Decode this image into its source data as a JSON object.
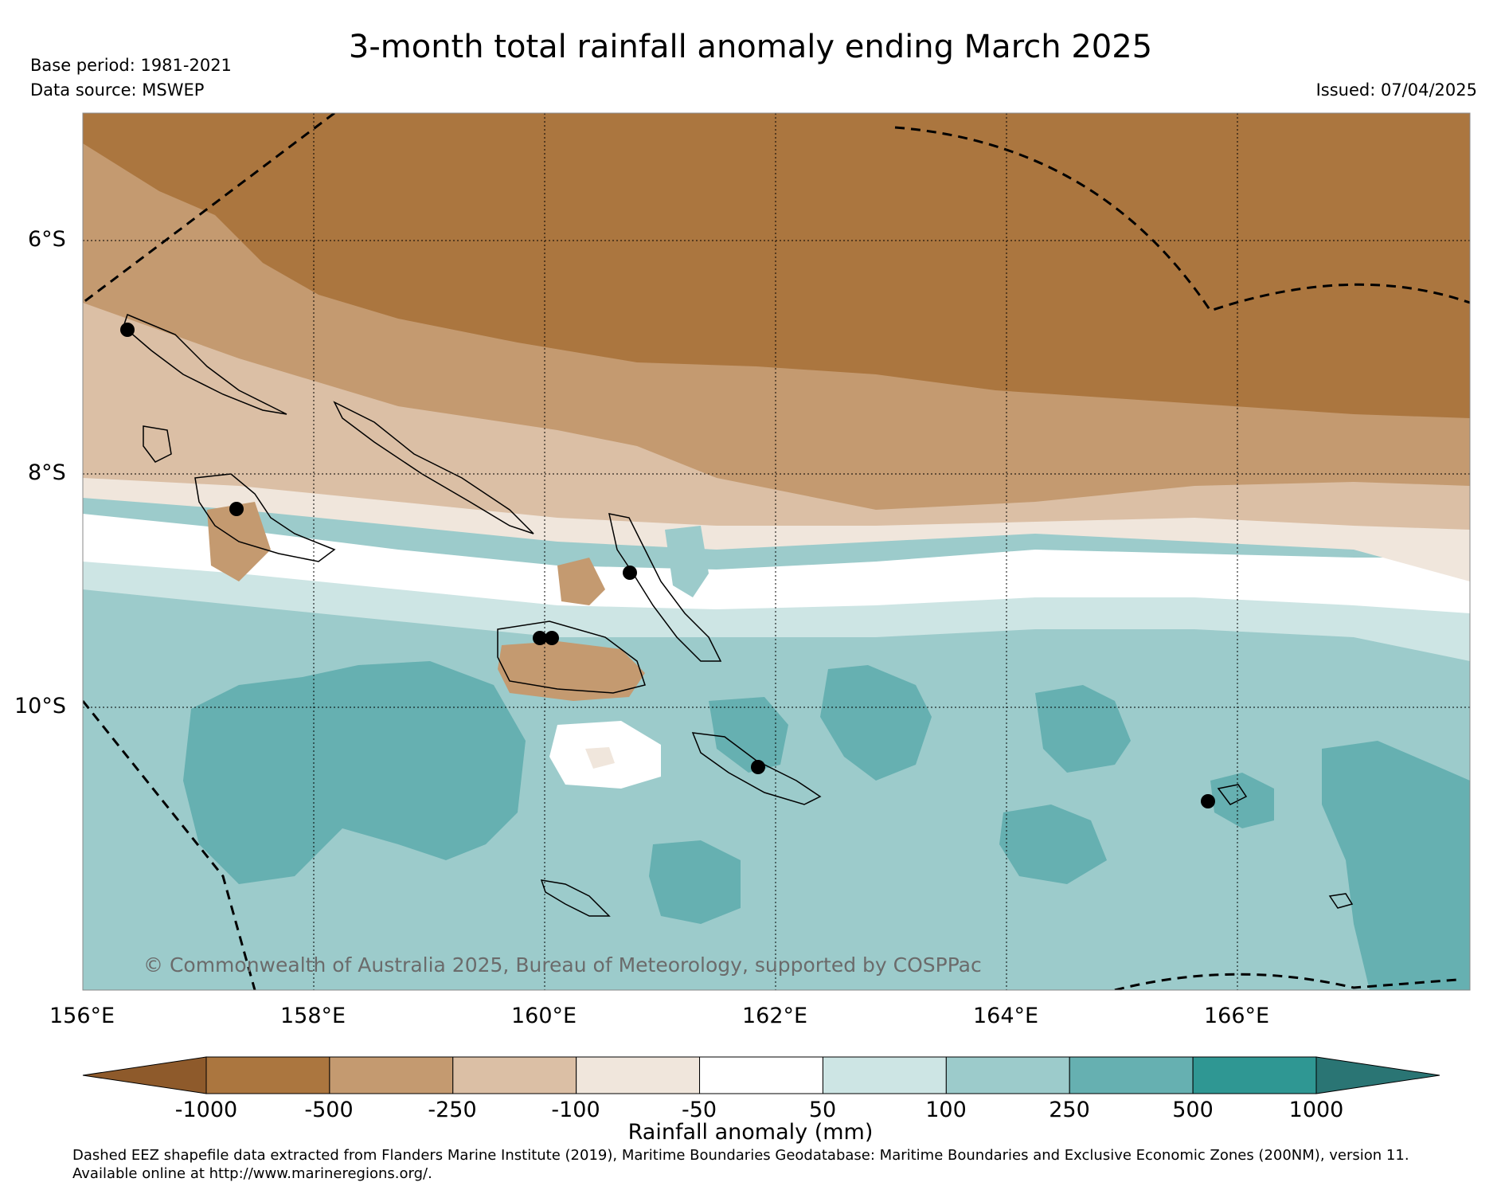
{
  "title": "3-month total rainfall anomaly ending March 2025",
  "base_period": "Base period: 1981-2021",
  "data_source": "Data source: MSWEP",
  "issued": "Issued: 07/04/2025",
  "lat_labels": [
    "6°S",
    "8°S",
    "10°S"
  ],
  "lon_labels": [
    "156°E",
    "158°E",
    "160°E",
    "162°E",
    "164°E",
    "166°E"
  ],
  "copyright": "© Commonwealth of Australia 2025, Bureau of Meteorology, supported by COSPPac",
  "colorbar": {
    "title": "Rainfall anomaly (mm)",
    "ticks": [
      "-1000",
      "-500",
      "-250",
      "-100",
      "-50",
      "50",
      "100",
      "250",
      "500",
      "1000"
    ],
    "colors": [
      "#8e5a2b",
      "#ab763f",
      "#c49a70",
      "#dbbfa5",
      "#f0e6dc",
      "#ffffff",
      "#cde5e4",
      "#9ccbcb",
      "#66b0b1",
      "#2f9793",
      "#2a7574"
    ]
  },
  "footnote_line1": "Dashed EEZ shapefile data extracted from Flanders Marine Institute (2019), Maritime Boundaries Geodatabase: Maritime Boundaries and Exclusive Economic Zones (200NM), version 11.",
  "footnote_line2": "Available online at http://www.marineregions.org/."
}
